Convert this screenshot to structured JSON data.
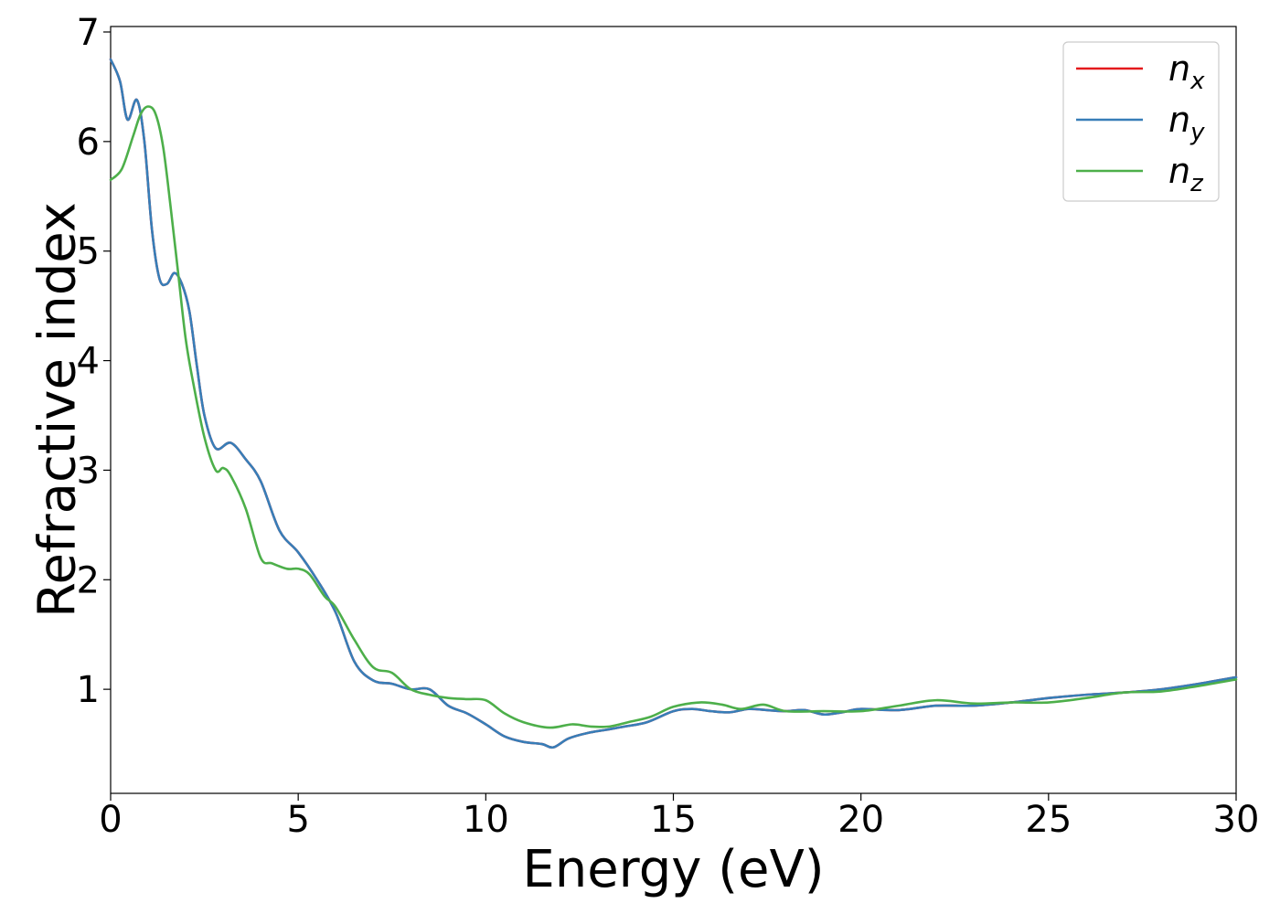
{
  "chart_data": {
    "type": "line",
    "title": "",
    "xlabel": "Energy (eV)",
    "ylabel": "Refractive index",
    "xlim": [
      0,
      30
    ],
    "ylim": [
      0.05,
      7.05
    ],
    "xticks": [
      0,
      5,
      10,
      15,
      20,
      25,
      30
    ],
    "yticks": [
      1,
      2,
      3,
      4,
      5,
      6,
      7
    ],
    "xtick_labels": [
      "0",
      "5",
      "10",
      "15",
      "20",
      "25",
      "30"
    ],
    "ytick_labels": [
      "1",
      "2",
      "3",
      "4",
      "5",
      "6",
      "7"
    ],
    "grid": false,
    "legend": "top-right",
    "series": [
      {
        "name": "n",
        "subscript": "x",
        "color": "#e41a1c",
        "x": [
          0,
          0.25,
          0.45,
          0.7,
          0.9,
          1.1,
          1.3,
          1.5,
          1.7,
          1.9,
          2.1,
          2.3,
          2.5,
          2.8,
          3.2,
          3.6,
          4.0,
          4.5,
          5.0,
          5.5,
          6.0,
          6.5,
          7.0,
          7.5,
          8.0,
          8.5,
          9.0,
          9.5,
          10.0,
          10.5,
          11.0,
          11.5,
          11.8,
          12.2,
          12.7,
          13.2,
          13.7,
          14.3,
          15.0,
          15.5,
          16.0,
          16.5,
          17.0,
          17.5,
          18.0,
          18.5,
          19.0,
          19.5,
          20.0,
          21.0,
          22.0,
          23.0,
          24.0,
          25.0,
          26.0,
          27.0,
          28.0,
          29.0,
          30.0
        ],
        "values": [
          6.75,
          6.55,
          6.2,
          6.38,
          6.0,
          5.2,
          4.75,
          4.7,
          4.8,
          4.7,
          4.45,
          3.95,
          3.5,
          3.2,
          3.25,
          3.1,
          2.9,
          2.45,
          2.25,
          2.0,
          1.7,
          1.25,
          1.08,
          1.05,
          1.0,
          1.0,
          0.85,
          0.78,
          0.68,
          0.57,
          0.52,
          0.5,
          0.47,
          0.55,
          0.6,
          0.63,
          0.66,
          0.7,
          0.8,
          0.82,
          0.8,
          0.79,
          0.82,
          0.81,
          0.8,
          0.81,
          0.77,
          0.79,
          0.82,
          0.81,
          0.85,
          0.85,
          0.88,
          0.92,
          0.95,
          0.97,
          1.0,
          1.05,
          1.11
        ]
      },
      {
        "name": "n",
        "subscript": "y",
        "color": "#377eb8",
        "x": [
          0,
          0.25,
          0.45,
          0.7,
          0.9,
          1.1,
          1.3,
          1.5,
          1.7,
          1.9,
          2.1,
          2.3,
          2.5,
          2.8,
          3.2,
          3.6,
          4.0,
          4.5,
          5.0,
          5.5,
          6.0,
          6.5,
          7.0,
          7.5,
          8.0,
          8.5,
          9.0,
          9.5,
          10.0,
          10.5,
          11.0,
          11.5,
          11.8,
          12.2,
          12.7,
          13.2,
          13.7,
          14.3,
          15.0,
          15.5,
          16.0,
          16.5,
          17.0,
          17.5,
          18.0,
          18.5,
          19.0,
          19.5,
          20.0,
          21.0,
          22.0,
          23.0,
          24.0,
          25.0,
          26.0,
          27.0,
          28.0,
          29.0,
          30.0
        ],
        "values": [
          6.75,
          6.55,
          6.2,
          6.38,
          6.0,
          5.2,
          4.75,
          4.7,
          4.8,
          4.7,
          4.45,
          3.95,
          3.5,
          3.2,
          3.25,
          3.1,
          2.9,
          2.45,
          2.25,
          2.0,
          1.7,
          1.25,
          1.08,
          1.05,
          1.0,
          1.0,
          0.85,
          0.78,
          0.68,
          0.57,
          0.52,
          0.5,
          0.47,
          0.55,
          0.6,
          0.63,
          0.66,
          0.7,
          0.8,
          0.82,
          0.8,
          0.79,
          0.82,
          0.81,
          0.8,
          0.81,
          0.77,
          0.79,
          0.82,
          0.81,
          0.85,
          0.85,
          0.88,
          0.92,
          0.95,
          0.97,
          1.0,
          1.05,
          1.11
        ]
      },
      {
        "name": "n",
        "subscript": "z",
        "color": "#4daf4a",
        "x": [
          0,
          0.3,
          0.6,
          0.8,
          1.0,
          1.2,
          1.4,
          1.6,
          1.8,
          2.0,
          2.2,
          2.5,
          2.8,
          3.0,
          3.2,
          3.6,
          4.0,
          4.3,
          4.7,
          5.0,
          5.3,
          5.7,
          6.0,
          6.5,
          7.0,
          7.5,
          8.0,
          8.5,
          9.0,
          9.5,
          10.0,
          10.5,
          11.0,
          11.7,
          12.3,
          12.8,
          13.3,
          13.8,
          14.4,
          15.0,
          15.7,
          16.3,
          16.8,
          17.4,
          18.0,
          19.0,
          20.0,
          21.0,
          22.0,
          23.0,
          24.0,
          25.0,
          26.0,
          27.0,
          28.0,
          29.0,
          30.0
        ],
        "values": [
          5.65,
          5.75,
          6.05,
          6.25,
          6.32,
          6.25,
          5.95,
          5.4,
          4.8,
          4.2,
          3.8,
          3.3,
          3.0,
          3.02,
          2.95,
          2.65,
          2.2,
          2.15,
          2.1,
          2.1,
          2.05,
          1.85,
          1.75,
          1.45,
          1.2,
          1.15,
          1.0,
          0.95,
          0.92,
          0.91,
          0.9,
          0.78,
          0.7,
          0.65,
          0.68,
          0.66,
          0.66,
          0.7,
          0.75,
          0.84,
          0.88,
          0.86,
          0.82,
          0.86,
          0.8,
          0.8,
          0.8,
          0.85,
          0.9,
          0.87,
          0.88,
          0.88,
          0.92,
          0.97,
          0.98,
          1.03,
          1.09
        ]
      }
    ]
  }
}
